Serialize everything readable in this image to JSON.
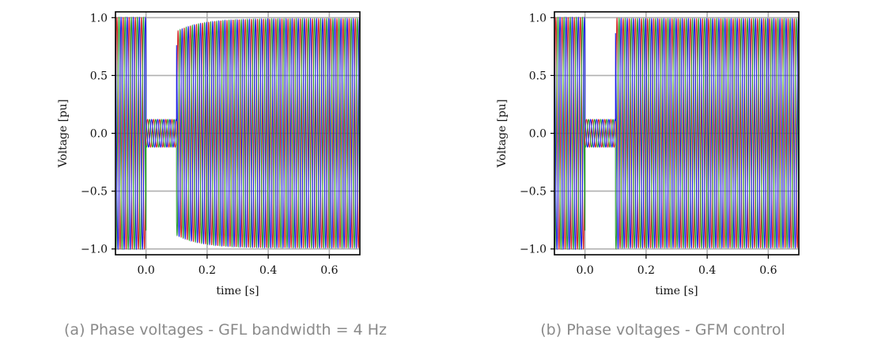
{
  "chart_data": [
    {
      "type": "line",
      "caption": "(a) Phase voltages - GFL bandwidth = 4 Hz",
      "xlabel": "time [s]",
      "ylabel": "Voltage [pu]",
      "xlim": [
        -0.1,
        0.7
      ],
      "ylim": [
        -1.05,
        1.05
      ],
      "xticks": [
        0.0,
        0.2,
        0.4,
        0.6
      ],
      "xtick_labels": [
        "0.0",
        "0.2",
        "0.4",
        "0.6"
      ],
      "yticks": [
        1.0,
        0.5,
        0.0,
        -0.5,
        -1.0
      ],
      "ytick_labels": [
        "1.0",
        "0.5",
        "0.0",
        "−0.5",
        "−1.0"
      ],
      "grid": true,
      "legend": false,
      "frequency_hz": 50,
      "fault_start_s": 0.0,
      "fault_end_s": 0.1,
      "fault_voltage_pu": 0.12,
      "recovery": {
        "start_amplitude_pu": 0.88,
        "final_amplitude_pu": 0.99,
        "time_constant_s": 0.08
      },
      "series": [
        {
          "color": "#d62728",
          "phase_deg": 0
        },
        {
          "color": "#2ca02c",
          "phase_deg": -120
        },
        {
          "color": "#1f1fe6",
          "phase_deg": 120
        }
      ]
    },
    {
      "type": "line",
      "caption": "(b) Phase voltages - GFM control",
      "xlabel": "time [s]",
      "ylabel": "Voltage [pu]",
      "xlim": [
        -0.1,
        0.7
      ],
      "ylim": [
        -1.05,
        1.05
      ],
      "xticks": [
        0.0,
        0.2,
        0.4,
        0.6
      ],
      "xtick_labels": [
        "0.0",
        "0.2",
        "0.4",
        "0.6"
      ],
      "yticks": [
        1.0,
        0.5,
        0.0,
        -0.5,
        -1.0
      ],
      "ytick_labels": [
        "1.0",
        "0.5",
        "0.0",
        "−0.5",
        "−1.0"
      ],
      "grid": true,
      "legend": false,
      "frequency_hz": 50,
      "fault_start_s": 0.0,
      "fault_end_s": 0.1,
      "fault_voltage_pu": 0.12,
      "recovery": {
        "start_amplitude_pu": 1.0,
        "final_amplitude_pu": 0.99,
        "time_constant_s": 0.01
      },
      "series": [
        {
          "color": "#d62728",
          "phase_deg": 0
        },
        {
          "color": "#2ca02c",
          "phase_deg": -120
        },
        {
          "color": "#1f1fe6",
          "phase_deg": 120
        }
      ]
    }
  ]
}
